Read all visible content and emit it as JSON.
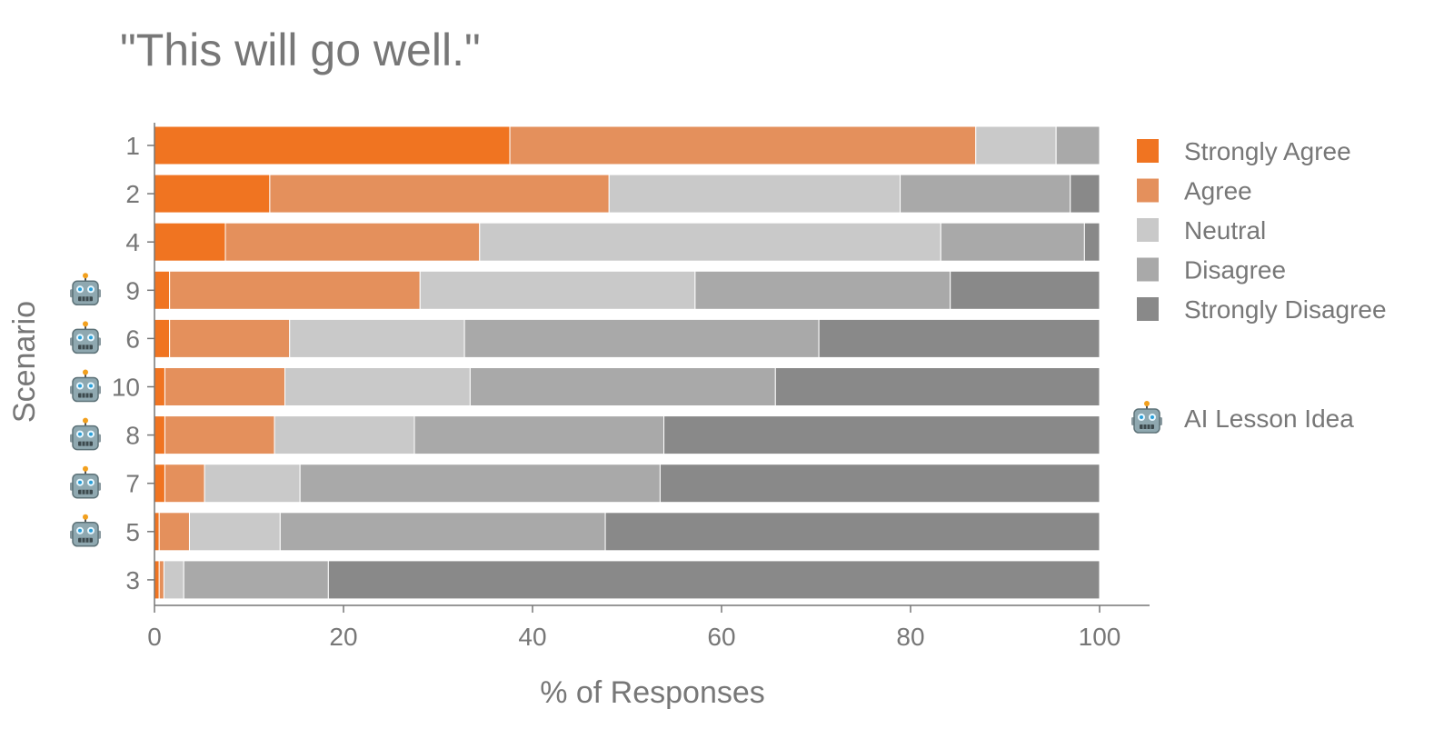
{
  "chart_data": {
    "type": "bar",
    "orientation": "horizontal",
    "stacked": true,
    "title": "\"This will go well.\"",
    "xlabel": "% of Responses",
    "ylabel": "Scenario",
    "xlim": [
      0,
      100
    ],
    "xticks": [
      "0",
      "20",
      "40",
      "60",
      "80",
      "100"
    ],
    "grid": false,
    "legend_position": "right",
    "categories": [
      "1",
      "2",
      "4",
      "9",
      "6",
      "10",
      "8",
      "7",
      "5",
      "3"
    ],
    "ai_lesson_idea": [
      false,
      false,
      false,
      true,
      true,
      true,
      true,
      true,
      true,
      false
    ],
    "series": [
      {
        "name": "Strongly Agree",
        "color": "#f07421",
        "values": [
          37.6,
          12.2,
          7.5,
          1.6,
          1.6,
          1.1,
          1.1,
          1.1,
          0.5,
          0.5
        ]
      },
      {
        "name": "Agree",
        "color": "#e4905c",
        "values": [
          49.3,
          35.9,
          26.9,
          26.5,
          12.7,
          12.7,
          11.6,
          4.2,
          3.2,
          0.5
        ]
      },
      {
        "name": "Neutral",
        "color": "#c9c9c9",
        "values": [
          8.5,
          30.8,
          48.8,
          29.1,
          18.5,
          19.6,
          14.8,
          10.1,
          9.6,
          2.1
        ]
      },
      {
        "name": "Disagree",
        "color": "#a9a9a9",
        "values": [
          4.6,
          18.0,
          15.2,
          27.0,
          37.5,
          32.3,
          26.4,
          38.1,
          34.4,
          15.3
        ]
      },
      {
        "name": "Strongly Disagree",
        "color": "#898989",
        "values": [
          0.0,
          3.1,
          1.6,
          15.8,
          29.7,
          34.3,
          46.1,
          46.5,
          52.3,
          81.6
        ]
      }
    ],
    "marker_legend": {
      "icon": "robot-icon",
      "label": "AI Lesson Idea"
    }
  }
}
